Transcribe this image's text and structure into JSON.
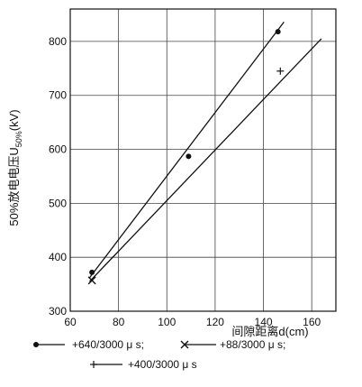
{
  "chart_data": {
    "type": "line",
    "xlabel": "间隙距离d(cm)",
    "ylabel_prefix": "50%放电电压U",
    "ylabel_subscript": "50%",
    "ylabel_suffix": "(kV)",
    "xlim": [
      60,
      170
    ],
    "ylim": [
      300,
      860
    ],
    "x_ticks": [
      60,
      80,
      100,
      120,
      140,
      160
    ],
    "y_ticks": [
      300,
      400,
      500,
      600,
      700,
      800
    ],
    "grid": true,
    "legend_position": "bottom",
    "series": [
      {
        "name": "+640/3000 μ s;",
        "marker": "dot",
        "points": [
          [
            69,
            372
          ],
          [
            109,
            587
          ],
          [
            146,
            818
          ]
        ]
      },
      {
        "name": "+88/3000 μ s;",
        "marker": "x",
        "points": [
          [
            69,
            357
          ]
        ]
      },
      {
        "name": "+400/3000 μ s",
        "marker": "plus",
        "points": [
          [
            147,
            745
          ]
        ]
      }
    ],
    "fit_lines": [
      {
        "from": [
          68,
          362
        ],
        "to": [
          148.5,
          836
        ]
      },
      {
        "from": [
          68,
          355
        ],
        "to": [
          164,
          805
        ]
      }
    ]
  }
}
